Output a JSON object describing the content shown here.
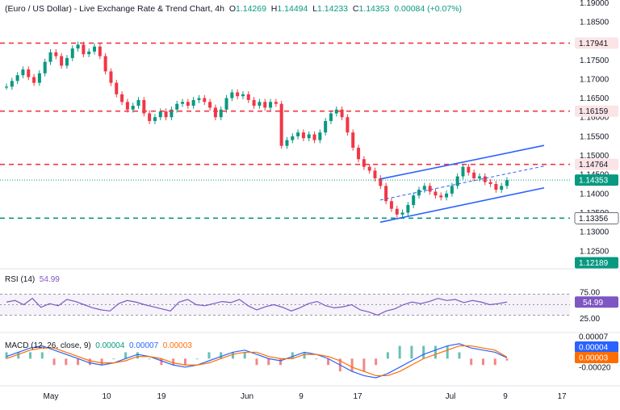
{
  "header": {
    "symbol": "(Euro / US Dollar) - Live Exchange Rate & Trend Chart, 4h",
    "o_label": "O",
    "o": "1.14269",
    "h_label": "H",
    "h": "1.14494",
    "l_label": "L",
    "l": "1.14233",
    "c_label": "C",
    "c": "1.14353",
    "change": "0.00084 (+0.07%)"
  },
  "rsi": {
    "label": "RSI (14)",
    "value": "54.99",
    "ticks": [
      "75.00",
      "25.00"
    ]
  },
  "macd": {
    "label": "MACD (12, 26, close, 9)",
    "v1": "0.00004",
    "v2": "0.00007",
    "v3": "0.00003",
    "ticks": [
      "0.00007",
      "0.00004",
      "0.00003",
      "-0.00020"
    ]
  },
  "colors": {
    "up": "#089981",
    "down": "#f23645",
    "resistance": "#f23645",
    "support": "#089981",
    "channel": "#2962ff",
    "rsi": "#7e57c2",
    "macd": "#2962ff",
    "signal": "#ff6d00"
  },
  "chart_data": {
    "type": "line",
    "title": "(Euro / US Dollar) - Live Exchange Rate & Trend Chart, 4h",
    "xlabel": "",
    "ylabel": "",
    "ylim": [
      1.1203,
      1.1907
    ],
    "y_ticks": [
      "1.19000",
      "1.18500",
      "1.17500",
      "1.17000",
      "1.16500",
      "1.16000",
      "1.15500",
      "1.15000",
      "1.14500",
      "1.14000",
      "1.13500",
      "1.13000",
      "1.12500"
    ],
    "x_ticks": [
      "May",
      "10",
      "19",
      "Jun",
      "9",
      "17",
      "Jul",
      "9",
      "17"
    ],
    "levels": [
      {
        "label": "1.17941",
        "value": 1.17941,
        "kind": "resistance"
      },
      {
        "label": "1.16159",
        "value": 1.16159,
        "kind": "resistance"
      },
      {
        "label": "1.14764",
        "value": 1.14764,
        "kind": "resistance"
      },
      {
        "label": "1.14353",
        "value": 1.14353,
        "kind": "current"
      },
      {
        "label": "1.13356",
        "value": 1.13356,
        "kind": "support"
      },
      {
        "label": "1.12189",
        "value": 1.12189,
        "kind": "tag"
      }
    ],
    "channel": {
      "upper": [
        [
          0,
          1.1438
        ],
        [
          1,
          1.1526
        ]
      ],
      "lower": [
        [
          0,
          1.1325
        ],
        [
          1,
          1.1415
        ]
      ],
      "mid": [
        [
          0,
          1.1383
        ],
        [
          1,
          1.1472
        ]
      ]
    },
    "series": [
      {
        "values": [
          1.168,
          1.1695,
          1.171,
          1.1725,
          1.1705,
          1.169,
          1.1715,
          1.1745,
          1.177,
          1.176,
          1.1735,
          1.1755,
          1.178,
          1.179,
          1.1765,
          1.1772,
          1.1785,
          1.176,
          1.172,
          1.169,
          1.166,
          1.164,
          1.162,
          1.163,
          1.1645,
          1.161,
          1.159,
          1.16,
          1.1615,
          1.16,
          1.162,
          1.1635,
          1.164,
          1.163,
          1.1645,
          1.165,
          1.164,
          1.1625,
          1.16,
          1.162,
          1.165,
          1.1665,
          1.1655,
          1.166,
          1.1645,
          1.163,
          1.164,
          1.1625,
          1.164,
          1.1635,
          1.1525,
          1.154,
          1.155,
          1.156,
          1.1545,
          1.1555,
          1.154,
          1.156,
          1.159,
          1.161,
          1.162,
          1.16,
          1.156,
          1.152,
          1.149,
          1.147,
          1.146,
          1.144,
          1.142,
          1.138,
          1.136,
          1.1345,
          1.135,
          1.137,
          1.1395,
          1.141,
          1.142,
          1.1405,
          1.1395,
          1.139,
          1.14,
          1.142,
          1.1445,
          1.147,
          1.1455,
          1.144,
          1.1445,
          1.143,
          1.1425,
          1.141,
          1.142,
          1.1435
        ]
      }
    ],
    "rsi_values": [
      55,
      58,
      50,
      62,
      45,
      52,
      48,
      60,
      56,
      50,
      44,
      40,
      38,
      52,
      58,
      55,
      50,
      46,
      42,
      38,
      55,
      60,
      50,
      48,
      52,
      56,
      54,
      60,
      48,
      40,
      46,
      50,
      45,
      38,
      44,
      52,
      56,
      48,
      44,
      46,
      50,
      40,
      36,
      30,
      38,
      42,
      50,
      55,
      52,
      56,
      62,
      58,
      60,
      54,
      58,
      55,
      50,
      52,
      55
    ],
    "macd_values": [
      0.0001,
      0.0003,
      0.0005,
      0.0006,
      0.0004,
      0.0002,
      0.0,
      -0.0002,
      -0.0003,
      -0.0002,
      0.0,
      0.0002,
      0.0001,
      -0.0001,
      -0.0003,
      -0.0004,
      -0.0003,
      -0.0001,
      0.0001,
      0.0003,
      0.0004,
      0.0002,
      0.0,
      -0.0001,
      0.0001,
      0.0003,
      0.0002,
      0.0,
      -0.0003,
      -0.0006,
      -0.0008,
      -0.0009,
      -0.0007,
      -0.0004,
      -0.0001,
      0.0002,
      0.0004,
      0.0006,
      0.0007,
      0.0005,
      0.0004,
      0.0003,
      4e-05
    ],
    "signal_values": [
      0.0,
      0.0002,
      0.0004,
      0.0005,
      0.0005,
      0.0003,
      0.0001,
      -0.0001,
      -0.0002,
      -0.0002,
      -0.0001,
      0.0001,
      0.0001,
      0.0,
      -0.0002,
      -0.0003,
      -0.0003,
      -0.0002,
      0.0,
      0.0002,
      0.0003,
      0.0003,
      0.0001,
      0.0,
      0.0,
      0.0002,
      0.0002,
      0.0001,
      -0.0001,
      -0.0004,
      -0.0006,
      -0.0008,
      -0.0008,
      -0.0006,
      -0.0003,
      0.0,
      0.0002,
      0.0004,
      0.0006,
      0.0006,
      0.0005,
      0.0004,
      7e-05
    ]
  }
}
